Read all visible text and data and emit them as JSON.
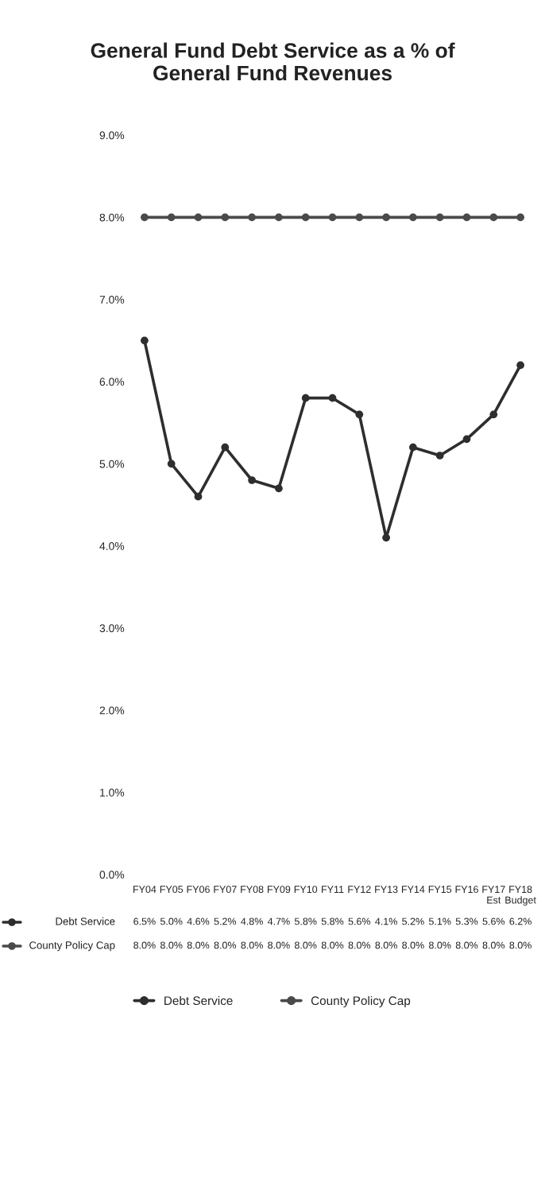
{
  "chart_data": {
    "type": "line",
    "title": "General Fund Debt Service as a % of\nGeneral Fund Revenues",
    "categories": [
      "FY04",
      "FY05",
      "FY06",
      "FY07",
      "FY08",
      "FY09",
      "FY10",
      "FY11",
      "FY12",
      "FY13",
      "FY14",
      "FY15",
      "FY16",
      "FY17\nEst",
      "FY18\nBudget"
    ],
    "series": [
      {
        "name": "Debt Service",
        "color": "#2e2e2e",
        "values": [
          6.5,
          5.0,
          4.6,
          5.2,
          4.8,
          4.7,
          5.8,
          5.8,
          5.6,
          4.1,
          5.2,
          5.1,
          5.3,
          5.6,
          6.2
        ],
        "value_labels": [
          "6.5%",
          "5.0%",
          "4.6%",
          "5.2%",
          "4.8%",
          "4.7%",
          "5.8%",
          "5.8%",
          "5.6%",
          "4.1%",
          "5.2%",
          "5.1%",
          "5.3%",
          "5.6%",
          "6.2%"
        ]
      },
      {
        "name": "County Policy Cap",
        "color": "#4a4a4a",
        "values": [
          8.0,
          8.0,
          8.0,
          8.0,
          8.0,
          8.0,
          8.0,
          8.0,
          8.0,
          8.0,
          8.0,
          8.0,
          8.0,
          8.0,
          8.0
        ],
        "value_labels": [
          "8.0%",
          "8.0%",
          "8.0%",
          "8.0%",
          "8.0%",
          "8.0%",
          "8.0%",
          "8.0%",
          "8.0%",
          "8.0%",
          "8.0%",
          "8.0%",
          "8.0%",
          "8.0%",
          "8.0%"
        ]
      }
    ],
    "ylim": [
      0,
      9
    ],
    "yticks": [
      {
        "value": 0,
        "label": "0.0%"
      },
      {
        "value": 1,
        "label": "1.0%"
      },
      {
        "value": 2,
        "label": "2.0%"
      },
      {
        "value": 3,
        "label": "3.0%"
      },
      {
        "value": 4,
        "label": "4.0%"
      },
      {
        "value": 5,
        "label": "5.0%"
      },
      {
        "value": 6,
        "label": "6.0%"
      },
      {
        "value": 7,
        "label": "7.0%"
      },
      {
        "value": 8,
        "label": "8.0%"
      },
      {
        "value": 9,
        "label": "9.0%"
      }
    ],
    "legend": "bottom",
    "marker": "circle",
    "line_style": "solid"
  }
}
